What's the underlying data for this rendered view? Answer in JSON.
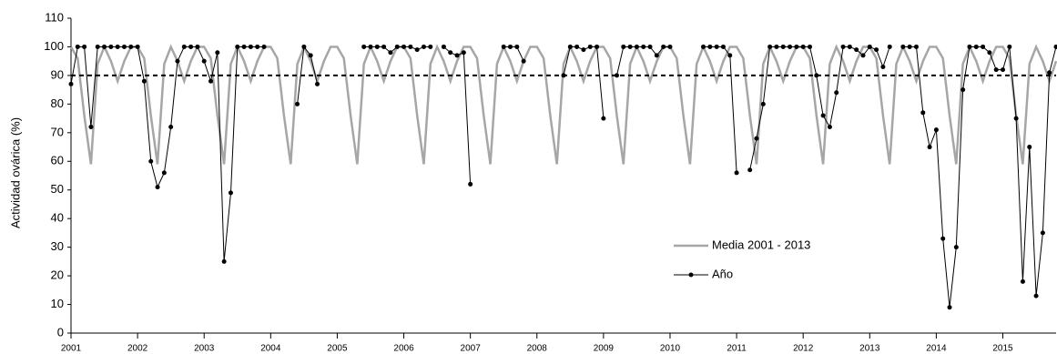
{
  "chart_data": {
    "type": "line",
    "ylabel": "Actividad ovárica (%)",
    "x": [
      2001.0,
      2001.1,
      2001.2,
      2001.3,
      2001.4,
      2001.5,
      2001.6,
      2001.7,
      2001.8,
      2001.9,
      2002.0,
      2002.1,
      2002.2,
      2002.3,
      2002.4,
      2002.5,
      2002.6,
      2002.7,
      2002.8,
      2002.9,
      2003.0,
      2003.1,
      2003.2,
      2003.3,
      2003.4,
      2003.5,
      2003.6,
      2003.7,
      2003.8,
      2003.9,
      2004.0,
      2004.1,
      2004.2,
      2004.3,
      2004.4,
      2004.5,
      2004.6,
      2004.7,
      2004.8,
      2004.9,
      2005.0,
      2005.1,
      2005.2,
      2005.3,
      2005.4,
      2005.5,
      2005.6,
      2005.7,
      2005.8,
      2005.9,
      2006.0,
      2006.1,
      2006.2,
      2006.3,
      2006.4,
      2006.5,
      2006.6,
      2006.7,
      2006.8,
      2006.9,
      2007.0,
      2007.1,
      2007.2,
      2007.3,
      2007.4,
      2007.5,
      2007.6,
      2007.7,
      2007.8,
      2007.9,
      2008.0,
      2008.1,
      2008.2,
      2008.3,
      2008.4,
      2008.5,
      2008.6,
      2008.7,
      2008.8,
      2008.9,
      2009.0,
      2009.1,
      2009.2,
      2009.3,
      2009.4,
      2009.5,
      2009.6,
      2009.7,
      2009.8,
      2009.9,
      2010.0,
      2010.1,
      2010.2,
      2010.3,
      2010.4,
      2010.5,
      2010.6,
      2010.7,
      2010.8,
      2010.9,
      2011.0,
      2011.1,
      2011.2,
      2011.3,
      2011.4,
      2011.5,
      2011.6,
      2011.7,
      2011.8,
      2011.9,
      2012.0,
      2012.1,
      2012.2,
      2012.3,
      2012.4,
      2012.5,
      2012.6,
      2012.7,
      2012.8,
      2012.9,
      2013.0,
      2013.1,
      2013.2,
      2013.3,
      2013.4,
      2013.5,
      2013.6,
      2013.7,
      2013.8,
      2013.9,
      2014.0,
      2014.1,
      2014.2,
      2014.3,
      2014.4,
      2014.5,
      2014.6,
      2014.7,
      2014.8,
      2014.9,
      2015.0,
      2015.1,
      2015.2,
      2015.3,
      2015.4,
      2015.5,
      2015.6,
      2015.7,
      2015.8
    ],
    "series": [
      {
        "name": "Media 2001 - 2013",
        "color": "#a6a6a6",
        "markers": false,
        "values": [
          100,
          96,
          76,
          59,
          94,
          100,
          95,
          88,
          95,
          100,
          100,
          96,
          76,
          59,
          94,
          100,
          95,
          88,
          95,
          100,
          100,
          96,
          76,
          59,
          94,
          100,
          95,
          88,
          95,
          100,
          100,
          96,
          76,
          59,
          94,
          100,
          95,
          88,
          95,
          100,
          100,
          96,
          76,
          59,
          94,
          100,
          95,
          88,
          95,
          100,
          100,
          96,
          76,
          59,
          94,
          100,
          95,
          88,
          95,
          100,
          100,
          96,
          76,
          59,
          94,
          100,
          95,
          88,
          95,
          100,
          100,
          96,
          76,
          59,
          94,
          100,
          95,
          88,
          95,
          100,
          100,
          96,
          76,
          59,
          94,
          100,
          95,
          88,
          95,
          100,
          100,
          96,
          76,
          59,
          94,
          100,
          95,
          88,
          95,
          100,
          100,
          96,
          76,
          59,
          94,
          100,
          95,
          88,
          95,
          100,
          100,
          96,
          76,
          59,
          94,
          100,
          95,
          88,
          95,
          100,
          100,
          96,
          76,
          59,
          94,
          100,
          95,
          88,
          95,
          100,
          100,
          96,
          76,
          59,
          94,
          100,
          95,
          88,
          95,
          100,
          100,
          96,
          76,
          59,
          94,
          100,
          95,
          88,
          95
        ]
      },
      {
        "name": "Año",
        "color": "#000000",
        "markers": true,
        "values": [
          87,
          100,
          100,
          72,
          100,
          100,
          100,
          100,
          100,
          100,
          100,
          88,
          60,
          51,
          56,
          72,
          95,
          100,
          100,
          100,
          95,
          88,
          98,
          25,
          49,
          100,
          100,
          100,
          100,
          100,
          null,
          null,
          null,
          null,
          80,
          100,
          97,
          87,
          null,
          null,
          null,
          null,
          null,
          null,
          100,
          100,
          100,
          100,
          98,
          100,
          100,
          100,
          99,
          100,
          100,
          null,
          100,
          98,
          97,
          98,
          52,
          null,
          null,
          null,
          null,
          100,
          100,
          100,
          95,
          null,
          null,
          null,
          null,
          null,
          90,
          100,
          100,
          99,
          100,
          100,
          75,
          null,
          90,
          100,
          100,
          100,
          100,
          100,
          97,
          100,
          100,
          null,
          null,
          null,
          null,
          100,
          100,
          100,
          100,
          97,
          56,
          null,
          57,
          68,
          80,
          100,
          100,
          100,
          100,
          100,
          100,
          100,
          90,
          76,
          72,
          84,
          100,
          100,
          99,
          97,
          100,
          99,
          93,
          100,
          null,
          100,
          100,
          100,
          77,
          65,
          71,
          33,
          9,
          30,
          85,
          100,
          100,
          100,
          98,
          92,
          92,
          100,
          75,
          18,
          65,
          13,
          35,
          91,
          100
        ]
      }
    ],
    "reference_line": 90,
    "xlim": [
      2001,
      2015.8
    ],
    "xticks": [
      2001,
      2002,
      2003,
      2004,
      2005,
      2006,
      2007,
      2008,
      2009,
      2010,
      2011,
      2012,
      2013,
      2014,
      2015
    ],
    "ylim": [
      0,
      110
    ],
    "yticks": [
      0,
      10,
      20,
      30,
      40,
      50,
      60,
      70,
      80,
      90,
      100,
      110
    ]
  }
}
